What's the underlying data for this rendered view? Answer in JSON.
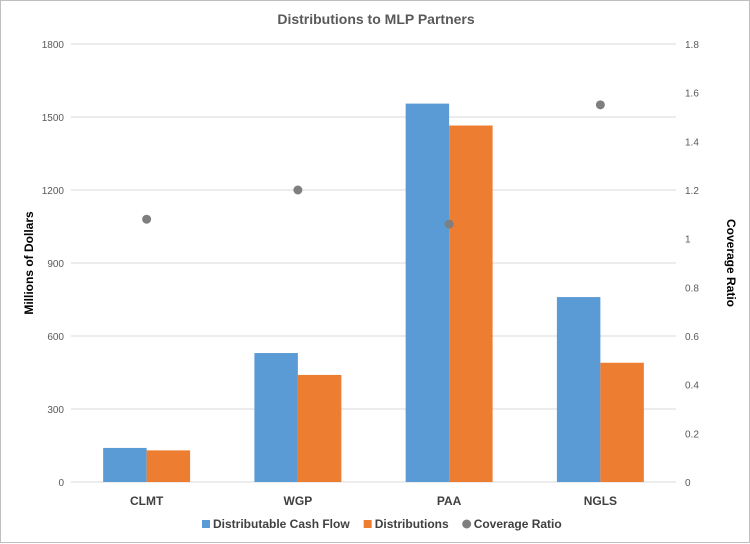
{
  "chart_data": {
    "type": "bar",
    "title": "Distributions to MLP Partners",
    "categories": [
      "CLMT",
      "WGP",
      "PAA",
      "NGLS"
    ],
    "ylabel": "Millions of Dollars",
    "y2label": "Coverage Ratio",
    "ylim": [
      0,
      1800
    ],
    "y2lim": [
      0,
      1.8
    ],
    "yticks": [
      "0",
      "300",
      "600",
      "900",
      "1200",
      "1500",
      "1800"
    ],
    "y2ticks": [
      "0",
      "0.2",
      "0.4",
      "0.6",
      "0.8",
      "1",
      "1.2",
      "1.4",
      "1.6",
      "1.8"
    ],
    "grid": true,
    "legend_position": "bottom",
    "series": [
      {
        "name": "Distributable Cash Flow",
        "type": "bar",
        "axis": "left",
        "color": "#5b9bd5",
        "values": [
          140,
          530,
          1555,
          760
        ]
      },
      {
        "name": "Distributions",
        "type": "bar",
        "axis": "left",
        "color": "#ed7d31",
        "values": [
          130,
          440,
          1465,
          490
        ]
      },
      {
        "name": "Coverage Ratio",
        "type": "scatter",
        "axis": "right",
        "color": "#7f7f7f",
        "values": [
          1.08,
          1.2,
          1.06,
          1.55
        ]
      }
    ]
  }
}
